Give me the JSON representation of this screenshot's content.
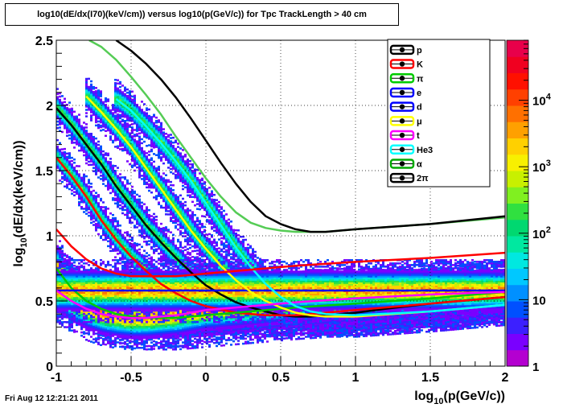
{
  "title": "log10(dE/dx(I70)(keV/cm)) versus log10(p(GeV/c)) for Tpc TrackLength > 40 cm",
  "timestamp": "Fri Aug 12 12:21:21 2011",
  "chart_data": {
    "type": "heatmap",
    "xlabel_main": "log",
    "xlabel_sub": "10",
    "xlabel_rest": "(p(GeV/c))",
    "ylabel_main": "log",
    "ylabel_sub": "10",
    "ylabel_rest": "(dE/dx(keV/cm))",
    "xlim": [
      -1,
      2
    ],
    "ylim": [
      0,
      2.5
    ],
    "xticks": [
      "-1",
      "-0.5",
      "0",
      "0.5",
      "1",
      "1.5",
      "2"
    ],
    "yticks": [
      "0",
      "0.5",
      "1",
      "1.5",
      "2",
      "2.5"
    ],
    "grid": true,
    "colorbar_labels": [
      {
        "base": "10",
        "exp": "4",
        "value": 10000
      },
      {
        "base": "10",
        "exp": "3",
        "value": 1000
      },
      {
        "base": "10",
        "exp": "2",
        "value": 100
      },
      {
        "base": "10",
        "exp": "",
        "value": 10
      },
      {
        "base": "1",
        "exp": "",
        "value": 1
      }
    ],
    "colorbar_colors": [
      "#b400d0",
      "#7a00ff",
      "#3c20ff",
      "#0050ff",
      "#0090ff",
      "#00c8ff",
      "#00e8e0",
      "#00e8a0",
      "#00d870",
      "#30e040",
      "#80f020",
      "#c8f000",
      "#f8f000",
      "#ffd000",
      "#ffa000",
      "#ff7000",
      "#ff4000",
      "#ff1000",
      "#f00020",
      "#e8004a"
    ],
    "legend_position": "top-right",
    "legend": [
      {
        "label": "p",
        "color": "#000000"
      },
      {
        "label": "K",
        "color": "#ff0000"
      },
      {
        "label": "π",
        "color": "#00cc00"
      },
      {
        "label": "e",
        "color": "#0000ff"
      },
      {
        "label": "d",
        "color": "#0000ff"
      },
      {
        "label": "μ",
        "color": "#ffff00"
      },
      {
        "label": "t",
        "color": "#ff00ff"
      },
      {
        "label": "He3",
        "color": "#00ffff"
      },
      {
        "label": "α",
        "color": "#00aa00"
      },
      {
        "label": "2π",
        "color": "#000000"
      }
    ],
    "series": [
      {
        "color": "#000000",
        "x": [
          -1.0,
          -0.9,
          -0.8,
          -0.7,
          -0.6,
          -0.5,
          -0.4,
          -0.3,
          -0.2,
          -0.1,
          0.0,
          0.1,
          0.2,
          0.3,
          0.4,
          0.5,
          0.6,
          0.7,
          0.8,
          1.0,
          1.2,
          1.5,
          2.0
        ],
        "y": [
          1.98,
          1.85,
          1.7,
          1.55,
          1.38,
          1.23,
          1.08,
          0.95,
          0.83,
          0.72,
          0.62,
          0.55,
          0.49,
          0.45,
          0.42,
          0.39,
          0.38,
          0.38,
          0.39,
          0.41,
          0.44,
          0.48,
          0.53
        ]
      },
      {
        "color": "#ff0000",
        "x": [
          -1.0,
          -0.9,
          -0.8,
          -0.7,
          -0.6,
          -0.5,
          -0.4,
          -0.3,
          -0.2,
          -0.1,
          0.0,
          0.2,
          0.4,
          0.6,
          0.8,
          1.0,
          1.5,
          2.0
        ],
        "y": [
          1.6,
          1.46,
          1.3,
          1.12,
          0.97,
          0.84,
          0.73,
          0.63,
          0.56,
          0.5,
          0.46,
          0.41,
          0.39,
          0.39,
          0.41,
          0.43,
          0.48,
          0.53
        ]
      },
      {
        "color": "#00cc00",
        "x": [
          -1.0,
          -0.9,
          -0.8,
          -0.7,
          -0.6,
          -0.5,
          -0.4,
          -0.3,
          -0.2,
          -0.1,
          0.0,
          0.3,
          0.6,
          1.0,
          1.5,
          2.0
        ],
        "y": [
          0.75,
          0.6,
          0.5,
          0.44,
          0.4,
          0.38,
          0.37,
          0.37,
          0.37,
          0.38,
          0.39,
          0.42,
          0.45,
          0.48,
          0.52,
          0.57
        ]
      },
      {
        "color": "#0000ff",
        "x": [
          -1.0,
          -0.5,
          0.0,
          0.5,
          1.0,
          1.5,
          2.0
        ],
        "y": [
          0.58,
          0.58,
          0.58,
          0.58,
          0.58,
          0.58,
          0.58
        ]
      },
      {
        "color": "#ffff00",
        "x": [
          -0.8,
          -0.7,
          -0.6,
          -0.5,
          -0.4,
          -0.3,
          -0.2,
          -0.1,
          0.0,
          0.1,
          0.2,
          0.3,
          0.4,
          0.5,
          0.6,
          0.7,
          0.8,
          1.0,
          1.5,
          2.0
        ],
        "y": [
          2.07,
          1.95,
          1.82,
          1.68,
          1.52,
          1.36,
          1.2,
          1.04,
          0.9,
          0.77,
          0.66,
          0.57,
          0.5,
          0.45,
          0.41,
          0.39,
          0.38,
          0.38,
          0.42,
          0.47
        ]
      },
      {
        "color": "#ff00ff",
        "x": [
          -1.0,
          -0.9,
          -0.8,
          -0.7,
          -0.6,
          -0.5,
          -0.4,
          -0.3,
          -0.2,
          -0.1,
          0.0,
          0.3,
          0.6,
          1.0,
          1.5,
          2.0
        ],
        "y": [
          0.58,
          0.5,
          0.44,
          0.4,
          0.38,
          0.37,
          0.37,
          0.38,
          0.39,
          0.41,
          0.43,
          0.46,
          0.49,
          0.52,
          0.55,
          0.57
        ]
      },
      {
        "color": "#00ffff",
        "x": [
          -0.6,
          -0.5,
          -0.4,
          -0.3,
          -0.2,
          -0.1,
          0.0,
          0.1,
          0.2,
          0.3,
          0.4,
          0.5,
          0.6,
          0.7,
          0.8,
          1.0,
          1.5,
          2.0
        ],
        "y": [
          2.05,
          1.96,
          1.84,
          1.71,
          1.57,
          1.42,
          1.25,
          1.08,
          0.91,
          0.76,
          0.63,
          0.53,
          0.46,
          0.42,
          0.4,
          0.39,
          0.42,
          0.47
        ]
      },
      {
        "color": "#55cc55",
        "x": [
          -0.78,
          -0.7,
          -0.6,
          -0.5,
          -0.4,
          -0.3,
          -0.2,
          -0.1,
          0.0,
          0.1,
          0.2,
          0.3,
          0.4,
          0.5,
          0.6,
          0.7,
          0.8,
          0.9,
          1.0,
          1.5,
          2.0
        ],
        "y": [
          2.5,
          2.45,
          2.35,
          2.22,
          2.08,
          1.93,
          1.76,
          1.6,
          1.44,
          1.3,
          1.18,
          1.1,
          1.06,
          1.04,
          1.03,
          1.03,
          1.03,
          1.04,
          1.05,
          1.09,
          1.14
        ]
      },
      {
        "color": "#000000",
        "x": [
          -0.6,
          -0.5,
          -0.4,
          -0.3,
          -0.2,
          -0.1,
          0.0,
          0.1,
          0.2,
          0.3,
          0.4,
          0.5,
          0.6,
          0.7,
          0.8,
          0.9,
          1.0,
          1.5,
          2.0
        ],
        "y": [
          2.5,
          2.42,
          2.32,
          2.2,
          2.06,
          1.9,
          1.73,
          1.56,
          1.4,
          1.26,
          1.15,
          1.09,
          1.05,
          1.03,
          1.03,
          1.04,
          1.05,
          1.09,
          1.15
        ]
      },
      {
        "color": "#ff0000",
        "x": [
          -1.0,
          -0.9,
          -0.8,
          -0.7,
          -0.6,
          -0.5,
          -0.4,
          -0.3,
          -0.2,
          -0.1,
          0.0,
          0.3,
          0.6,
          1.0,
          1.5,
          2.0
        ],
        "y": [
          1.05,
          0.92,
          0.82,
          0.75,
          0.71,
          0.69,
          0.69,
          0.69,
          0.69,
          0.7,
          0.71,
          0.74,
          0.77,
          0.8,
          0.83,
          0.87
        ]
      }
    ]
  }
}
